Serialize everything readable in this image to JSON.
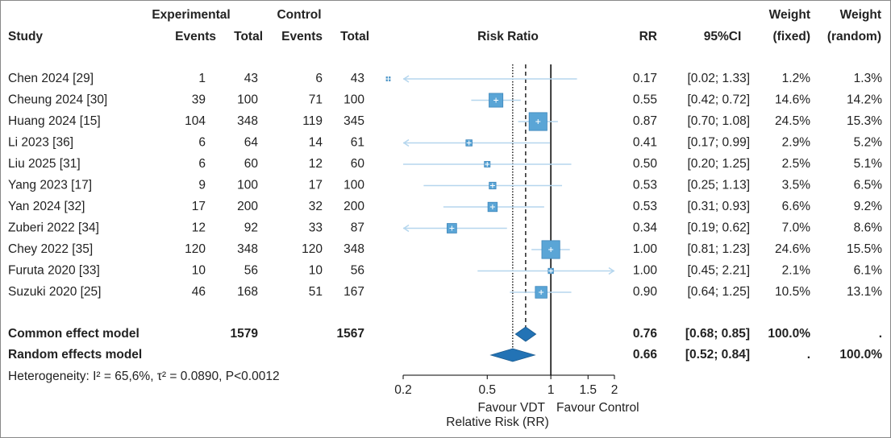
{
  "chart_data": {
    "type": "forest",
    "headers": {
      "experimental": "Experimental",
      "control": "Control",
      "study": "Study",
      "exp_events": "Events",
      "exp_total": "Total",
      "ctrl_events": "Events",
      "ctrl_total": "Total",
      "plot": "Risk Ratio",
      "rr": "RR",
      "ci": "95%CI",
      "weight_fixed_1": "Weight",
      "weight_fixed_2": "(fixed)",
      "weight_random_1": "Weight",
      "weight_random_2": "(random)"
    },
    "studies": [
      {
        "study": "Chen 2024 [29]",
        "exp_events": 1,
        "exp_total": 43,
        "ctrl_events": 6,
        "ctrl_total": 43,
        "rr": 0.17,
        "rr_label": "0.17",
        "ci": [
          0.02,
          1.33
        ],
        "ci_label": "[0.02; 1.33]",
        "weight_fixed": 1.2,
        "weight_fixed_label": "1.2%",
        "weight_random": 1.3,
        "weight_random_label": "1.3%"
      },
      {
        "study": "Cheung 2024 [30]",
        "exp_events": 39,
        "exp_total": 100,
        "ctrl_events": 71,
        "ctrl_total": 100,
        "rr": 0.55,
        "rr_label": "0.55",
        "ci": [
          0.42,
          0.72
        ],
        "ci_label": "[0.42; 0.72]",
        "weight_fixed": 14.6,
        "weight_fixed_label": "14.6%",
        "weight_random": 14.2,
        "weight_random_label": "14.2%"
      },
      {
        "study": "Huang 2024 [15]",
        "exp_events": 104,
        "exp_total": 348,
        "ctrl_events": 119,
        "ctrl_total": 345,
        "rr": 0.87,
        "rr_label": "0.87",
        "ci": [
          0.7,
          1.08
        ],
        "ci_label": "[0.70; 1.08]",
        "weight_fixed": 24.5,
        "weight_fixed_label": "24.5%",
        "weight_random": 15.3,
        "weight_random_label": "15.3%"
      },
      {
        "study": "Li 2023 [36]",
        "exp_events": 6,
        "exp_total": 64,
        "ctrl_events": 14,
        "ctrl_total": 61,
        "rr": 0.41,
        "rr_label": "0.41",
        "ci": [
          0.17,
          0.99
        ],
        "ci_label": "[0.17; 0.99]",
        "weight_fixed": 2.9,
        "weight_fixed_label": "2.9%",
        "weight_random": 5.2,
        "weight_random_label": "5.2%"
      },
      {
        "study": "Liu 2025 [31]",
        "exp_events": 6,
        "exp_total": 60,
        "ctrl_events": 12,
        "ctrl_total": 60,
        "rr": 0.5,
        "rr_label": "0.50",
        "ci": [
          0.2,
          1.25
        ],
        "ci_label": "[0.20; 1.25]",
        "weight_fixed": 2.5,
        "weight_fixed_label": "2.5%",
        "weight_random": 5.1,
        "weight_random_label": "5.1%"
      },
      {
        "study": "Yang 2023 [17]",
        "exp_events": 9,
        "exp_total": 100,
        "ctrl_events": 17,
        "ctrl_total": 100,
        "rr": 0.53,
        "rr_label": "0.53",
        "ci": [
          0.25,
          1.13
        ],
        "ci_label": "[0.25; 1.13]",
        "weight_fixed": 3.5,
        "weight_fixed_label": "3.5%",
        "weight_random": 6.5,
        "weight_random_label": "6.5%"
      },
      {
        "study": "Yan 2024 [32]",
        "exp_events": 17,
        "exp_total": 200,
        "ctrl_events": 32,
        "ctrl_total": 200,
        "rr": 0.53,
        "rr_label": "0.53",
        "ci": [
          0.31,
          0.93
        ],
        "ci_label": "[0.31; 0.93]",
        "weight_fixed": 6.6,
        "weight_fixed_label": "6.6%",
        "weight_random": 9.2,
        "weight_random_label": "9.2%"
      },
      {
        "study": "Zuberi 2022 [34]",
        "exp_events": 12,
        "exp_total": 92,
        "ctrl_events": 33,
        "ctrl_total": 87,
        "rr": 0.34,
        "rr_label": "0.34",
        "ci": [
          0.19,
          0.62
        ],
        "ci_label": "[0.19; 0.62]",
        "weight_fixed": 7.0,
        "weight_fixed_label": "7.0%",
        "weight_random": 8.6,
        "weight_random_label": "8.6%"
      },
      {
        "study": "Chey 2022 [35]",
        "exp_events": 120,
        "exp_total": 348,
        "ctrl_events": 120,
        "ctrl_total": 348,
        "rr": 1.0,
        "rr_label": "1.00",
        "ci": [
          0.81,
          1.23
        ],
        "ci_label": "[0.81; 1.23]",
        "weight_fixed": 24.6,
        "weight_fixed_label": "24.6%",
        "weight_random": 15.5,
        "weight_random_label": "15.5%"
      },
      {
        "study": "Furuta 2020 [33]",
        "exp_events": 10,
        "exp_total": 56,
        "ctrl_events": 10,
        "ctrl_total": 56,
        "rr": 1.0,
        "rr_label": "1.00",
        "ci": [
          0.45,
          2.21
        ],
        "ci_label": "[0.45; 2.21]",
        "weight_fixed": 2.1,
        "weight_fixed_label": "2.1%",
        "weight_random": 6.1,
        "weight_random_label": "6.1%"
      },
      {
        "study": "Suzuki 2020 [25]",
        "exp_events": 46,
        "exp_total": 168,
        "ctrl_events": 51,
        "ctrl_total": 167,
        "rr": 0.9,
        "rr_label": "0.90",
        "ci": [
          0.64,
          1.25
        ],
        "ci_label": "[0.64; 1.25]",
        "weight_fixed": 10.5,
        "weight_fixed_label": "10.5%",
        "weight_random": 13.1,
        "weight_random_label": "13.1%"
      }
    ],
    "summaries": [
      {
        "study": "Common effect model",
        "exp_total": 1579,
        "ctrl_total": 1567,
        "rr": 0.76,
        "rr_label": "0.76",
        "ci": [
          0.68,
          0.85
        ],
        "ci_label": "[0.68; 0.85]",
        "weight_fixed_label": "100.0%",
        "weight_random_label": ".",
        "line": "dashed"
      },
      {
        "study": "Random effects model",
        "rr": 0.66,
        "rr_label": "0.66",
        "ci": [
          0.52,
          0.84
        ],
        "ci_label": "[0.52; 0.84]",
        "weight_fixed_label": ".",
        "weight_random_label": "100.0%",
        "line": "dotted"
      }
    ],
    "heterogeneity": "Heterogeneity: I² = 65,6%, τ² = 0.0890, P<0.0012",
    "null_line": 1,
    "xscale": "log",
    "xlim": [
      0.2,
      2
    ],
    "xticks": [
      0.2,
      0.5,
      1,
      1.5,
      2
    ],
    "favour_left": "Favour VDT",
    "favour_right": "Favour Control",
    "xlabel": "Relative Risk (RR)",
    "square_color": "#5aa5d6",
    "ci_color": "#b5d6ee",
    "diamond_color": "#2373b5"
  }
}
